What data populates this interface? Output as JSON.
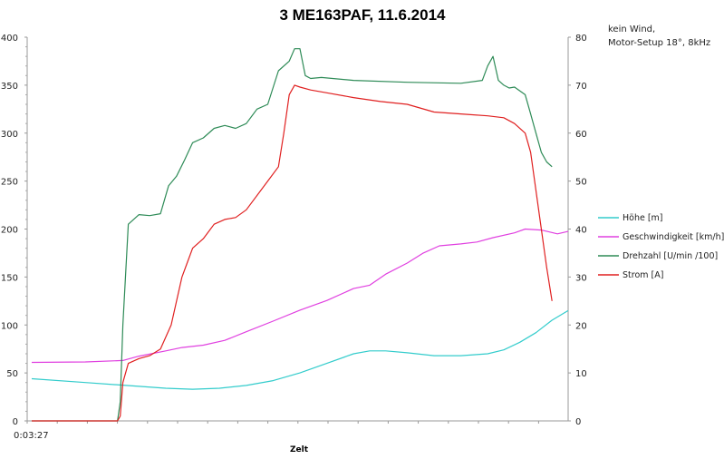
{
  "chart_data": {
    "type": "line",
    "title": "3 ME163PAF, 11.6.2014",
    "xlabel": "Zelt",
    "x_tick_label": "0:03:27",
    "note": [
      "kein Wind,",
      "Motor-Setup 18°, 8kHz"
    ],
    "y_left": {
      "lim": [
        0,
        400
      ],
      "ticks": [
        0,
        50,
        100,
        150,
        200,
        250,
        300,
        350,
        400
      ]
    },
    "y_right": {
      "lim": [
        0,
        80
      ],
      "ticks": [
        0,
        10,
        20,
        30,
        40,
        50,
        60,
        70,
        80
      ]
    },
    "x_range": [
      0,
      100
    ],
    "grid": false,
    "legend_position": "right",
    "series": [
      {
        "name": "Höhe [m]",
        "color": "#33CCCC",
        "axis": "left",
        "x": [
          0,
          10,
          20,
          25,
          30,
          35,
          40,
          45,
          50,
          55,
          60,
          63,
          66,
          70,
          75,
          80,
          85,
          88,
          91,
          94,
          97,
          100
        ],
        "y": [
          44,
          40,
          36,
          34,
          33,
          34,
          37,
          42,
          50,
          60,
          70,
          73,
          73,
          71,
          68,
          68,
          70,
          74,
          82,
          92,
          105,
          115
        ]
      },
      {
        "name": "Geschwindigkeit [km/h]",
        "color": "#E040E0",
        "axis": "right",
        "x": [
          0,
          10,
          17,
          20,
          25,
          28,
          32,
          36,
          40,
          45,
          50,
          55,
          60,
          63,
          66,
          70,
          73,
          76,
          80,
          83,
          86,
          90,
          92,
          95,
          98,
          100
        ],
        "y": [
          12.2,
          12.3,
          12.6,
          13.5,
          14.6,
          15.3,
          15.8,
          16.8,
          18.6,
          20.8,
          23.1,
          25.1,
          27.6,
          28.3,
          30.6,
          32.9,
          35,
          36.5,
          36.9,
          37.3,
          38.2,
          39.2,
          40,
          39.8,
          39,
          39.5
        ]
      },
      {
        "name": "Drehzahl [U/min /100]",
        "color": "#2E8B57",
        "axis": "left",
        "x": [
          0,
          16,
          16.5,
          17,
          18,
          20,
          22,
          24,
          25.5,
          27,
          28.5,
          30,
          32,
          34,
          36,
          38,
          40,
          42,
          44,
          46,
          48,
          49,
          50,
          51,
          52,
          54,
          60,
          70,
          80,
          84,
          85,
          86,
          87,
          88,
          89,
          90,
          92,
          93,
          94,
          95,
          96,
          97
        ],
        "y": [
          0,
          0,
          20,
          100,
          205,
          215,
          214,
          216,
          245,
          255,
          272,
          290,
          295,
          305,
          308,
          305,
          310,
          325,
          330,
          365,
          375,
          388,
          388,
          360,
          357,
          358,
          355,
          353,
          352,
          355,
          370,
          380,
          355,
          350,
          347,
          348,
          340,
          320,
          300,
          280,
          270,
          265
        ]
      },
      {
        "name": "Strom [A]",
        "color": "#E02020",
        "axis": "left",
        "x": [
          0,
          16,
          16.5,
          17,
          18,
          20,
          22,
          24,
          26,
          28,
          29,
          30,
          32,
          34,
          36,
          38,
          40,
          44,
          46,
          47,
          48,
          49,
          50,
          52,
          55,
          60,
          65,
          70,
          75,
          80,
          85,
          88,
          90,
          92,
          93,
          94,
          95,
          96,
          97
        ],
        "y": [
          0,
          0,
          5,
          40,
          60,
          65,
          68,
          75,
          100,
          150,
          165,
          180,
          190,
          205,
          210,
          212,
          220,
          250,
          265,
          300,
          340,
          350,
          348,
          345,
          342,
          337,
          333,
          330,
          322,
          320,
          318,
          316,
          310,
          300,
          280,
          240,
          200,
          160,
          125
        ]
      }
    ]
  }
}
